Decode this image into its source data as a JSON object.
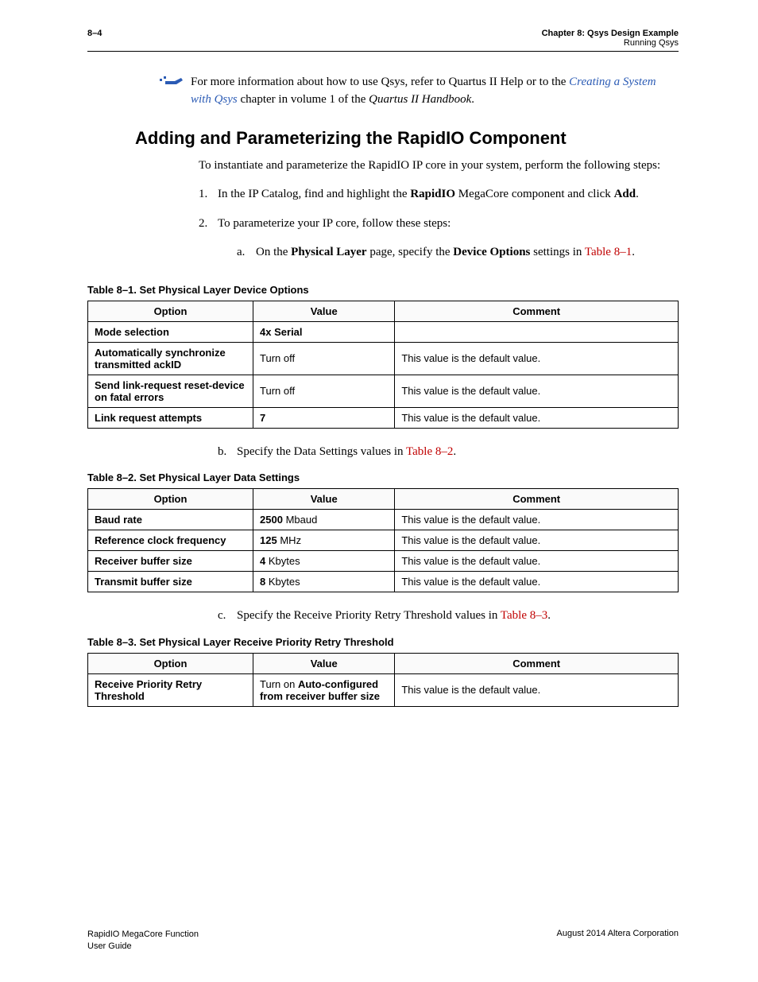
{
  "header": {
    "page_num": "8–4",
    "chapter": "Chapter 8:  Qsys Design Example",
    "section": "Running Qsys"
  },
  "note": {
    "pre": "For more information about how to use Qsys, refer to Quartus II Help or to the ",
    "link": "Creating a System with Qsys",
    "mid": " chapter in volume 1 of the ",
    "doc": "Quartus II Handbook",
    "post": "."
  },
  "heading": "Adding and Parameterizing the RapidIO Component",
  "intro": "To instantiate and parameterize the RapidIO IP core in your system, perform the following steps:",
  "steps": {
    "s1": {
      "num": "1.",
      "pre": "In the IP Catalog, find and highlight the ",
      "b1": "RapidIO",
      "mid": " MegaCore component and click ",
      "b2": "Add",
      "post": "."
    },
    "s2": {
      "num": "2.",
      "text": "To parameterize your IP core, follow these steps:"
    },
    "s2a": {
      "letter": "a.",
      "pre": "On the ",
      "b1": "Physical Layer",
      "mid1": " page, specify the ",
      "b2": "Device Options",
      "mid2": " settings in ",
      "ref": "Table 8–1",
      "post": "."
    },
    "s2b": {
      "letter": "b.",
      "pre": "Specify the Data Settings values in ",
      "ref": "Table 8–2",
      "post": "."
    },
    "s2c": {
      "letter": "c.",
      "pre": "Specify the Receive Priority Retry Threshold values in ",
      "ref": "Table 8–3",
      "post": "."
    }
  },
  "table_headers": {
    "option": "Option",
    "value": "Value",
    "comment": "Comment"
  },
  "table1": {
    "caption": "Table 8–1.  Set Physical Layer Device Options",
    "rows": [
      {
        "option": "Mode selection",
        "value_b": "4x Serial",
        "value_r": "",
        "comment": ""
      },
      {
        "option": "Automatically synchronize transmitted ackID",
        "value_b": "",
        "value_r": "Turn off",
        "comment": "This value is the default value."
      },
      {
        "option": "Send link-request reset-device on fatal errors",
        "value_b": "",
        "value_r": "Turn off",
        "comment": "This value is the default value."
      },
      {
        "option": "Link request attempts",
        "value_b": "7",
        "value_r": "",
        "comment": "This value is the default value."
      }
    ]
  },
  "table2": {
    "caption": "Table 8–2.  Set Physical Layer Data Settings",
    "rows": [
      {
        "option": "Baud rate",
        "value_b": "2500",
        "value_r": " Mbaud",
        "comment": "This value is the default value."
      },
      {
        "option": "Reference clock frequency",
        "value_b": "125",
        "value_r": " MHz",
        "comment": "This value is the default value."
      },
      {
        "option": "Receiver buffer size",
        "value_b": "4",
        "value_r": " Kbytes",
        "comment": "This value is the default value."
      },
      {
        "option": "Transmit buffer size",
        "value_b": "8",
        "value_r": " Kbytes",
        "comment": "This value is the default value."
      }
    ]
  },
  "table3": {
    "caption": "Table 8–3.  Set Physical Layer Receive Priority Retry Threshold",
    "rows": [
      {
        "option": "Receive Priority Retry Threshold",
        "value_pre": "Turn on ",
        "value_b": "Auto-configured from receiver buffer size",
        "comment": "This value is the default value."
      }
    ]
  },
  "footer": {
    "left1": "RapidIO MegaCore Function",
    "left2": "User Guide",
    "right": "August 2014   Altera Corporation"
  }
}
